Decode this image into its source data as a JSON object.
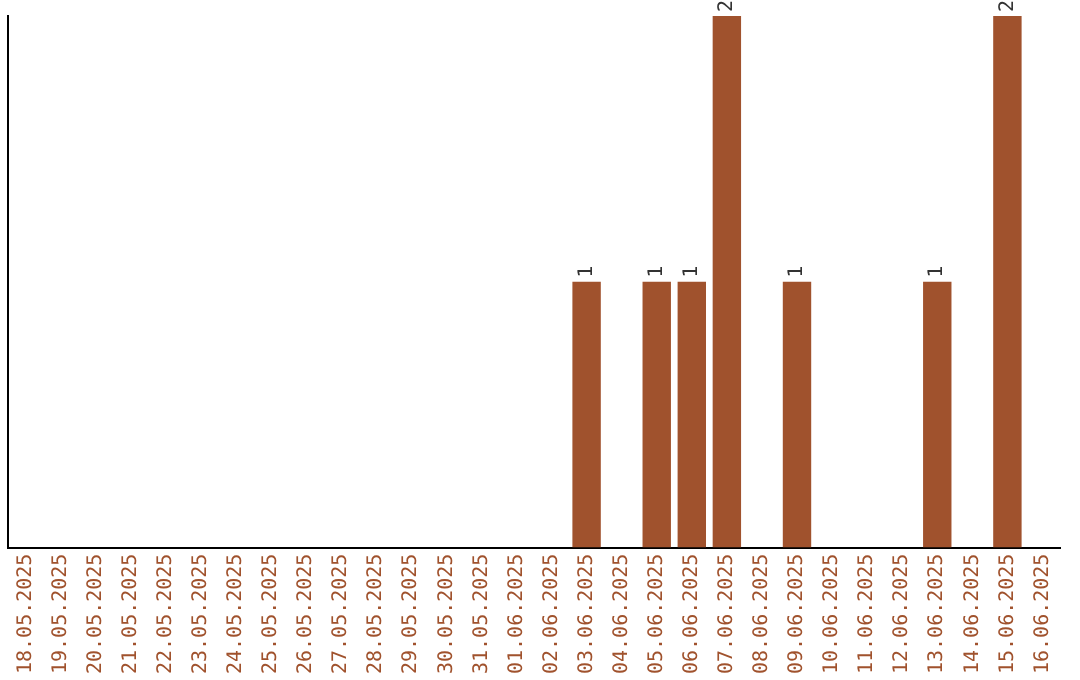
{
  "chart_data": {
    "type": "bar",
    "categories": [
      "18.05.2025",
      "19.05.2025",
      "20.05.2025",
      "21.05.2025",
      "22.05.2025",
      "23.05.2025",
      "24.05.2025",
      "25.05.2025",
      "26.05.2025",
      "27.05.2025",
      "28.05.2025",
      "29.05.2025",
      "30.05.2025",
      "31.05.2025",
      "01.06.2025",
      "02.06.2025",
      "03.06.2025",
      "04.06.2025",
      "05.06.2025",
      "06.06.2025",
      "07.06.2025",
      "08.06.2025",
      "09.06.2025",
      "10.06.2025",
      "11.06.2025",
      "12.06.2025",
      "13.06.2025",
      "14.06.2025",
      "15.06.2025",
      "16.06.2025"
    ],
    "values": [
      null,
      null,
      null,
      null,
      null,
      null,
      null,
      null,
      null,
      null,
      null,
      null,
      null,
      null,
      null,
      null,
      1,
      null,
      1,
      1,
      2,
      null,
      1,
      null,
      null,
      null,
      1,
      null,
      2,
      null
    ],
    "color": "#a0522d",
    "data_labels": true,
    "tick_labels": "x",
    "grid": false,
    "legend": false
  }
}
